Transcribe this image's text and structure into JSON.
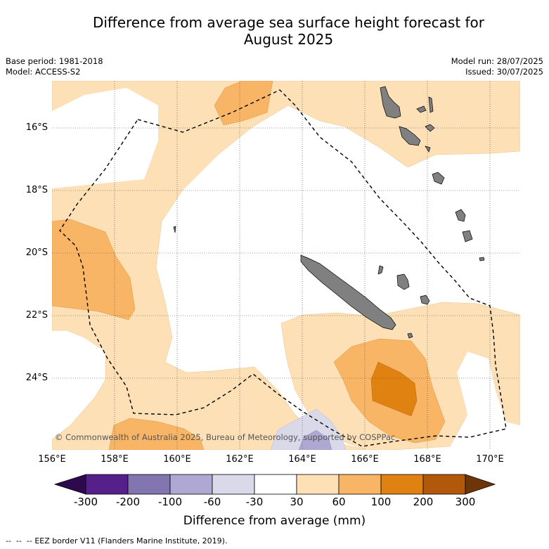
{
  "header": {
    "title_line1": "Difference from average sea surface height forecast for",
    "title_line2": "August 2025",
    "base_period": "Base period: 1981-2018",
    "model": "Model: ACCESS-S2",
    "model_run": "Model run: 28/07/2025",
    "issued": "Issued: 30/07/2025"
  },
  "map": {
    "lat_labels": [
      "16°S",
      "18°S",
      "20°S",
      "22°S",
      "24°S"
    ],
    "lon_labels": [
      "156°E",
      "158°E",
      "160°E",
      "162°E",
      "164°E",
      "166°E",
      "168°E",
      "170°E"
    ],
    "copyright": "© Commonwealth of Australia 2025, Bureau of Meteorology, supported by COSPPac",
    "land_color": "#808080"
  },
  "colorbar": {
    "ticks": [
      "-300",
      "-200",
      "-100",
      "-60",
      "-30",
      "30",
      "60",
      "100",
      "200",
      "300"
    ],
    "colors": [
      "#2d0a4e",
      "#55208a",
      "#8275b0",
      "#aea8d2",
      "#d9d9ea",
      "#ffffff",
      "#fde0b5",
      "#f9b566",
      "#e08212",
      "#b1580b",
      "#6e3507"
    ],
    "title": "Difference from average (mm)"
  },
  "legend": {
    "eez_text": "EEZ border V11 (Flanders Marine Institute, 2019)."
  }
}
